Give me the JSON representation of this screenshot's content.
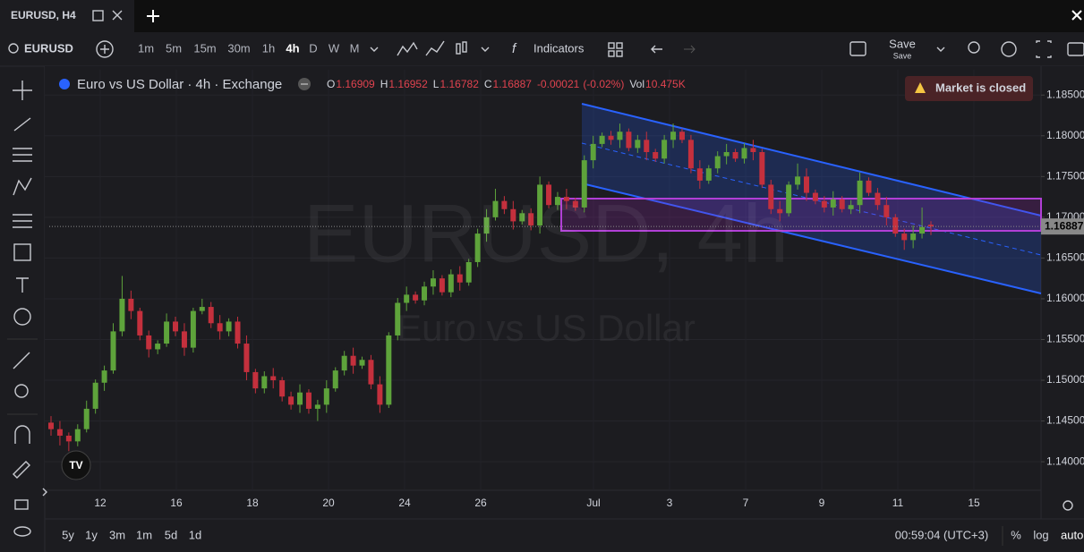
{
  "tab": {
    "title": "EURUSD, H4"
  },
  "toolbar": {
    "symbol": "EURUSD",
    "intervals": [
      "1m",
      "5m",
      "15m",
      "30m",
      "1h",
      "4h",
      "D",
      "W",
      "M"
    ],
    "indicators": "Indicators",
    "save": "Save",
    "save_sub": "Save"
  },
  "legend": {
    "title": "Euro vs US Dollar · 4h · Exchange",
    "open_label": "O",
    "high_label": "H",
    "low_label": "L",
    "close_label": "C",
    "change": -0.00021,
    "change_pct": "(-0.02%)",
    "vol_label": "Vol",
    "vol": "10.475K"
  },
  "notice": "Market is closed",
  "watermark": {
    "symbol": "EURUSD, 4h",
    "name": "Euro vs US Dollar"
  },
  "chart_data": {
    "type": "candlestick",
    "up_color": "#5ea33b",
    "down_color": "#c4303d",
    "grid": true,
    "ylim": [
      1.1365,
      1.1881
    ],
    "yticks": [
      {
        "value": 1.185,
        "label": "1.18500"
      },
      {
        "value": 1.18,
        "label": "1.18000"
      },
      {
        "value": 1.175,
        "label": "1.17500"
      },
      {
        "value": 1.17,
        "label": "1.17000"
      },
      {
        "value": 1.165,
        "label": "1.16500"
      },
      {
        "value": 1.16,
        "label": "1.16000"
      },
      {
        "value": 1.155,
        "label": "1.15500"
      },
      {
        "value": 1.15,
        "label": "1.15000"
      },
      {
        "value": 1.145,
        "label": "1.14500"
      },
      {
        "value": 1.14,
        "label": "1.14000"
      }
    ],
    "x_labels": [
      "12",
      "16",
      "18",
      "20",
      "24",
      "26",
      "Jul",
      "3",
      "7",
      "9",
      "11",
      "15"
    ],
    "candles": {
      "open": [
        1.1448,
        1.144,
        1.1432,
        1.1425,
        1.144,
        1.1465,
        1.1497,
        1.1512,
        1.156,
        1.16,
        1.1585,
        1.1555,
        1.1538,
        1.1545,
        1.1572,
        1.156,
        1.154,
        1.1585,
        1.159,
        1.157,
        1.156,
        1.1572,
        1.1545,
        1.151,
        1.149,
        1.1505,
        1.15,
        1.148,
        1.147,
        1.1485,
        1.1465,
        1.147,
        1.149,
        1.1512,
        1.153,
        1.1518,
        1.1525,
        1.1495,
        1.147,
        1.1555,
        1.1595,
        1.1605,
        1.1598,
        1.1615,
        1.1625,
        1.1608,
        1.163,
        1.162,
        1.1645,
        1.168,
        1.17,
        1.172,
        1.171,
        1.1695,
        1.1705,
        1.169,
        1.174,
        1.1715,
        1.1725,
        1.172,
        1.1712,
        1.177,
        1.179,
        1.18,
        1.1795,
        1.1805,
        1.1785,
        1.1795,
        1.178,
        1.1772,
        1.1795,
        1.1805,
        1.1795,
        1.176,
        1.1745,
        1.176,
        1.1775,
        1.178,
        1.1772,
        1.1785,
        1.178,
        1.174,
        1.171,
        1.1705,
        1.174,
        1.175,
        1.173,
        1.172,
        1.1712,
        1.1722,
        1.171,
        1.1715,
        1.1745,
        1.173,
        1.1715,
        1.17,
        1.168,
        1.1672,
        1.168,
        1.16909
      ],
      "high": [
        1.1456,
        1.145,
        1.1436,
        1.1446,
        1.1475,
        1.1501,
        1.1518,
        1.157,
        1.1628,
        1.161,
        1.1589,
        1.1561,
        1.1549,
        1.1582,
        1.1578,
        1.157,
        1.1589,
        1.16,
        1.1596,
        1.158,
        1.1576,
        1.1578,
        1.1555,
        1.1514,
        1.1511,
        1.1515,
        1.1504,
        1.1486,
        1.1495,
        1.1489,
        1.1476,
        1.15,
        1.1516,
        1.1536,
        1.154,
        1.1529,
        1.1531,
        1.1505,
        1.1559,
        1.1601,
        1.1615,
        1.1609,
        1.1621,
        1.1635,
        1.1629,
        1.1636,
        1.164,
        1.1649,
        1.1686,
        1.171,
        1.1735,
        1.1726,
        1.172,
        1.1709,
        1.1711,
        1.175,
        1.1744,
        1.1731,
        1.1735,
        1.1724,
        1.1776,
        1.18,
        1.1804,
        1.1806,
        1.1815,
        1.1809,
        1.1801,
        1.1805,
        1.1784,
        1.1801,
        1.1815,
        1.1809,
        1.1801,
        1.177,
        1.1764,
        1.1781,
        1.179,
        1.1784,
        1.1791,
        1.1795,
        1.1784,
        1.1746,
        1.172,
        1.1744,
        1.1766,
        1.176,
        1.1734,
        1.1726,
        1.1732,
        1.1726,
        1.1721,
        1.1755,
        1.1749,
        1.1736,
        1.1725,
        1.1704,
        1.1686,
        1.169,
        1.1712,
        1.16952
      ],
      "low": [
        1.1432,
        1.142,
        1.1413,
        1.1419,
        1.1436,
        1.1459,
        1.1487,
        1.1508,
        1.1554,
        1.1575,
        1.1549,
        1.1528,
        1.1532,
        1.1541,
        1.1554,
        1.153,
        1.1534,
        1.1581,
        1.1564,
        1.155,
        1.1554,
        1.1539,
        1.15,
        1.1484,
        1.1484,
        1.149,
        1.1474,
        1.1464,
        1.146,
        1.1459,
        1.145,
        1.146,
        1.1486,
        1.1506,
        1.1508,
        1.1514,
        1.1489,
        1.146,
        1.1466,
        1.1549,
        1.1585,
        1.1594,
        1.1592,
        1.1605,
        1.1604,
        1.1602,
        1.161,
        1.1616,
        1.1639,
        1.167,
        1.1696,
        1.1704,
        1.1685,
        1.1691,
        1.1684,
        1.168,
        1.1711,
        1.1709,
        1.171,
        1.1708,
        1.1706,
        1.176,
        1.1786,
        1.1789,
        1.1785,
        1.1781,
        1.1779,
        1.177,
        1.1768,
        1.1766,
        1.1785,
        1.1791,
        1.1754,
        1.1735,
        1.1741,
        1.1754,
        1.1765,
        1.1768,
        1.1766,
        1.177,
        1.1736,
        1.1704,
        1.1695,
        1.1701,
        1.1734,
        1.172,
        1.1716,
        1.1706,
        1.1702,
        1.1706,
        1.1704,
        1.1705,
        1.1726,
        1.1709,
        1.169,
        1.1676,
        1.166,
        1.1662,
        1.1674,
        1.16782
      ],
      "close": [
        1.144,
        1.1432,
        1.1425,
        1.144,
        1.1465,
        1.1497,
        1.1512,
        1.156,
        1.16,
        1.1585,
        1.1555,
        1.1538,
        1.1545,
        1.1572,
        1.156,
        1.154,
        1.1585,
        1.159,
        1.157,
        1.156,
        1.1572,
        1.1545,
        1.151,
        1.149,
        1.1505,
        1.15,
        1.148,
        1.147,
        1.1485,
        1.1465,
        1.147,
        1.149,
        1.1512,
        1.153,
        1.1518,
        1.1525,
        1.1495,
        1.147,
        1.1555,
        1.1595,
        1.1605,
        1.1598,
        1.1615,
        1.1625,
        1.1608,
        1.163,
        1.162,
        1.1645,
        1.168,
        1.17,
        1.172,
        1.171,
        1.1695,
        1.1705,
        1.169,
        1.174,
        1.1715,
        1.1725,
        1.172,
        1.1712,
        1.177,
        1.179,
        1.18,
        1.1795,
        1.1805,
        1.1785,
        1.1795,
        1.178,
        1.1772,
        1.1795,
        1.1805,
        1.1795,
        1.176,
        1.1745,
        1.176,
        1.1775,
        1.178,
        1.1772,
        1.1785,
        1.178,
        1.174,
        1.171,
        1.1705,
        1.174,
        1.175,
        1.173,
        1.172,
        1.1712,
        1.1722,
        1.171,
        1.1715,
        1.1745,
        1.173,
        1.1715,
        1.17,
        1.168,
        1.1672,
        1.168,
        1.1688,
        1.16887
      ]
    }
  },
  "bottom_bar": {
    "ranges": [
      "5y",
      "1y",
      "3m",
      "1m",
      "5d",
      "1d"
    ],
    "clock": "00:59:04 (UTC+3)",
    "percent": "%",
    "log": "log",
    "auto": "auto"
  }
}
